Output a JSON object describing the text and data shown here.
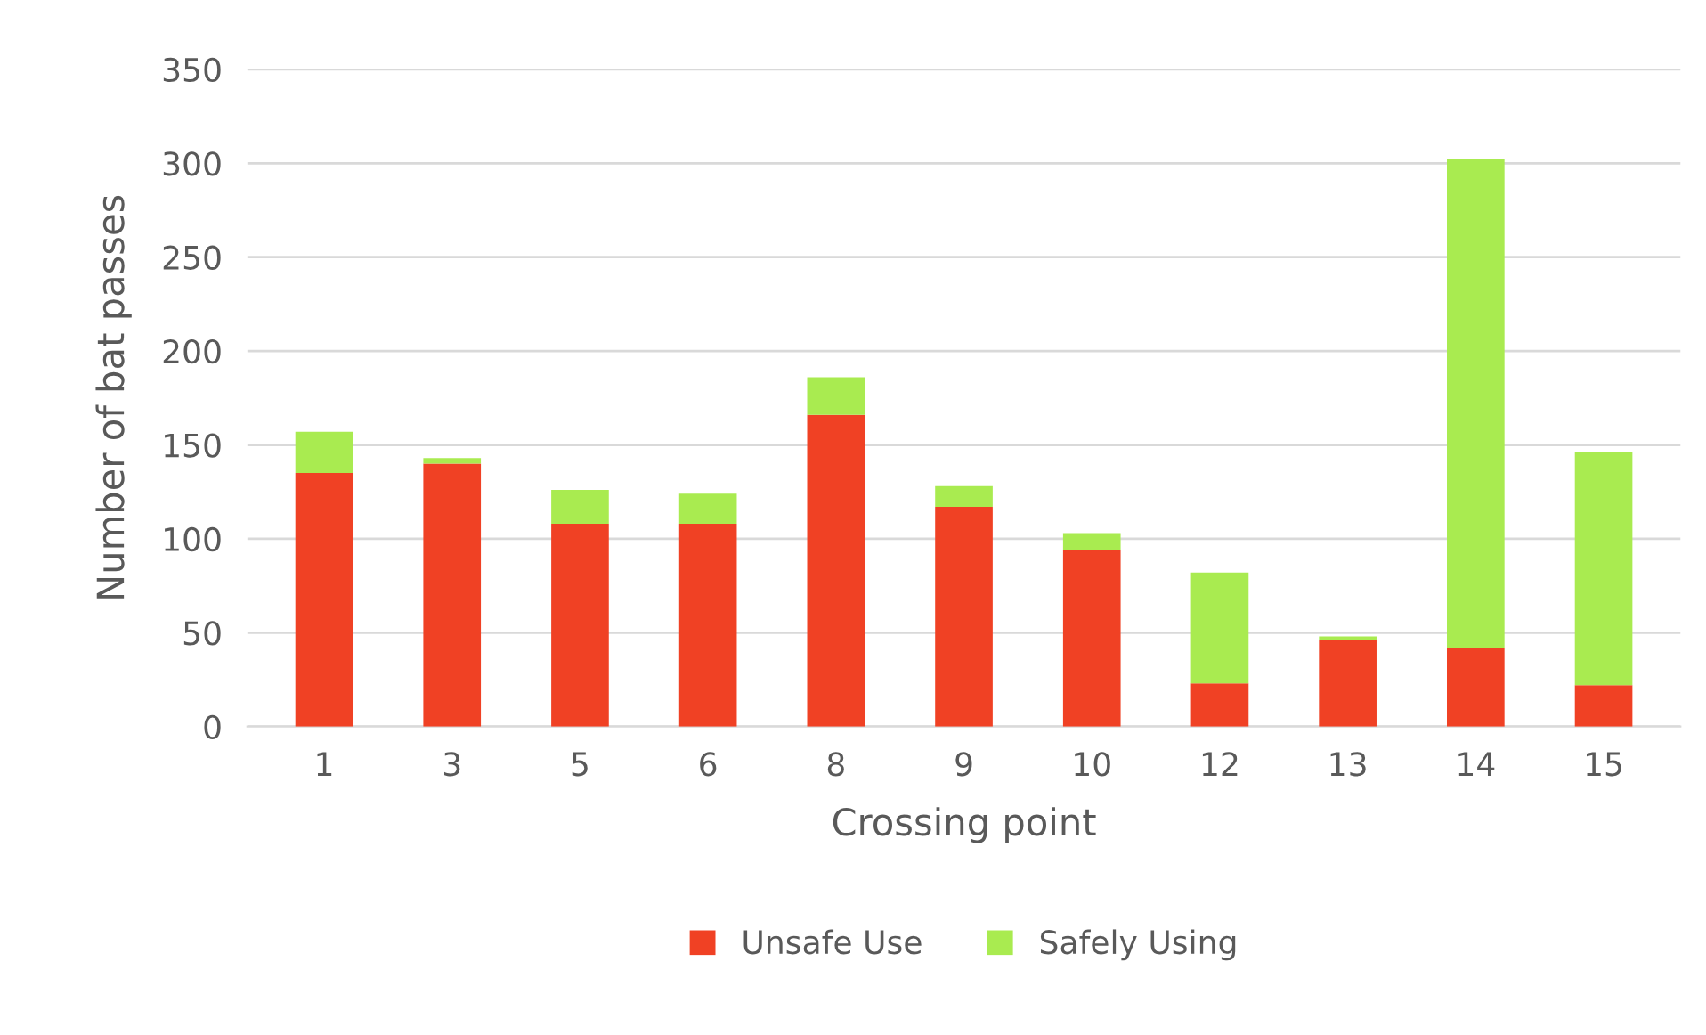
{
  "chart_data": {
    "type": "bar",
    "stacked": true,
    "xlabel": "Crossing point",
    "ylabel": "Number of bat passes",
    "categories": [
      "1",
      "3",
      "5",
      "6",
      "8",
      "9",
      "10",
      "12",
      "13",
      "14",
      "15"
    ],
    "series": [
      {
        "name": "Unsafe Use",
        "color": "#f04124",
        "values": [
          135,
          140,
          108,
          108,
          166,
          117,
          94,
          23,
          46,
          42,
          22
        ]
      },
      {
        "name": "Safely Using",
        "color": "#a9eb50",
        "values": [
          22,
          3,
          18,
          16,
          20,
          11,
          9,
          59,
          2,
          260,
          124
        ]
      }
    ],
    "ylim": [
      0,
      350
    ],
    "yticks": [
      0,
      50,
      100,
      150,
      200,
      250,
      300,
      350
    ],
    "grid": "y",
    "legend": "bottom"
  }
}
